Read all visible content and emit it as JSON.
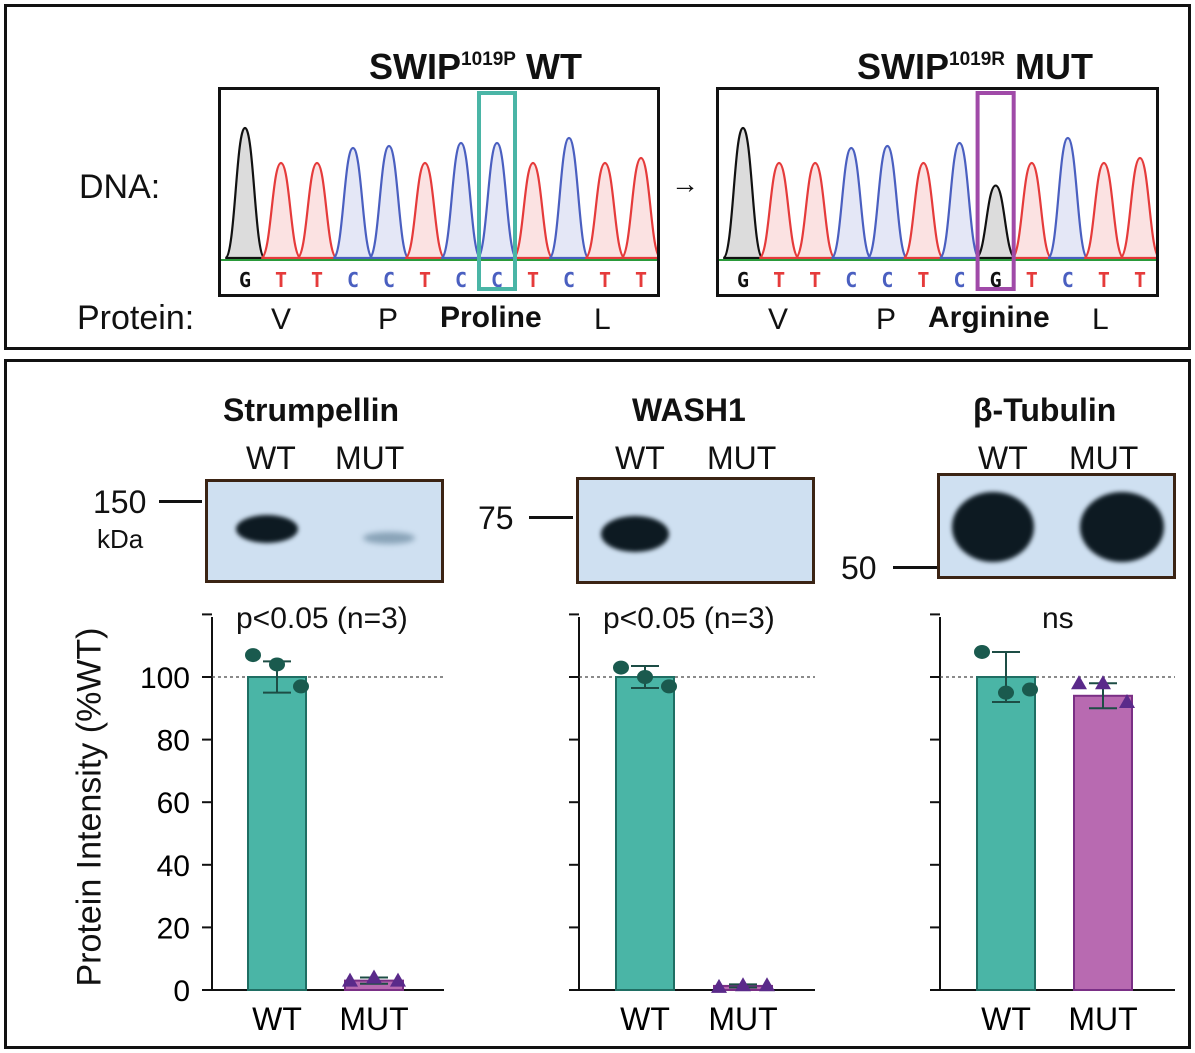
{
  "colors": {
    "wt": "#4ab5a6",
    "mut": "#b86ab1",
    "wt_point": "#1a5a4e",
    "mut_point": "#5a2a8a",
    "wt_box": "#4ab5a6",
    "mut_box": "#a04aa8",
    "trace_A": "#2a9a3a",
    "trace_C": "#4a5fc0",
    "trace_G": "#111111",
    "trace_T": "#e53b3b",
    "blot_bg": "#cfe0f1",
    "blot_border": "#3b2414"
  },
  "dna_panel": {
    "dna_label": "DNA:",
    "protein_label": "Protein:",
    "arrow": "→",
    "wt": {
      "title_main": "SWIP",
      "title_sup": "1019P",
      "title_tail": " WT",
      "bases": [
        "G",
        "T",
        "T",
        "C",
        "C",
        "T",
        "C",
        "C",
        "T",
        "C",
        "T",
        "T"
      ],
      "aa": [
        "V",
        "P",
        "Proline",
        "L"
      ]
    },
    "mut": {
      "title_main": "SWIP",
      "title_sup": "1019R",
      "title_tail": " MUT",
      "bases": [
        "G",
        "T",
        "T",
        "C",
        "C",
        "T",
        "C",
        "G",
        "T",
        "C",
        "T",
        "T"
      ],
      "aa": [
        "V",
        "P",
        "Arginine",
        "L"
      ]
    }
  },
  "blots": {
    "lane_labels": [
      "WT",
      "MUT"
    ],
    "strumpellin": {
      "title": "Strumpellin",
      "marker": "150",
      "unit": "kDa"
    },
    "wash1": {
      "title": "WASH1",
      "marker": "75"
    },
    "tubulin": {
      "title": "β-Tubulin",
      "marker": "50"
    }
  },
  "chart_data": [
    {
      "type": "bar",
      "title": "Strumpellin",
      "annotation": "p<0.05 (n=3)",
      "categories": [
        "WT",
        "MUT"
      ],
      "ylabel": "Protein Intensity (%WT)",
      "ylim": [
        0,
        100
      ],
      "yticks": [
        0,
        20,
        40,
        60,
        80,
        100
      ],
      "reference_line": 100,
      "series": [
        {
          "values": [
            100,
            3
          ],
          "sem": [
            5,
            1
          ],
          "points": [
            [
              107,
              104,
              97
            ],
            [
              3,
              4,
              3
            ]
          ]
        }
      ]
    },
    {
      "type": "bar",
      "title": "WASH1",
      "annotation": "p<0.05 (n=3)",
      "categories": [
        "WT",
        "MUT"
      ],
      "ylim": [
        0,
        100
      ],
      "reference_line": 100,
      "series": [
        {
          "values": [
            100,
            1.3
          ],
          "sem": [
            3.5,
            0.5
          ],
          "points": [
            [
              103,
              100,
              97
            ],
            [
              1,
              1.5,
              1.5
            ]
          ]
        }
      ]
    },
    {
      "type": "bar",
      "title": "β-Tubulin",
      "annotation": "ns",
      "categories": [
        "WT",
        "MUT"
      ],
      "ylim": [
        0,
        100
      ],
      "reference_line": 100,
      "series": [
        {
          "values": [
            100,
            94
          ],
          "sem": [
            8,
            4
          ],
          "points": [
            [
              108,
              95,
              96
            ],
            [
              98,
              98,
              92
            ]
          ]
        }
      ]
    }
  ]
}
